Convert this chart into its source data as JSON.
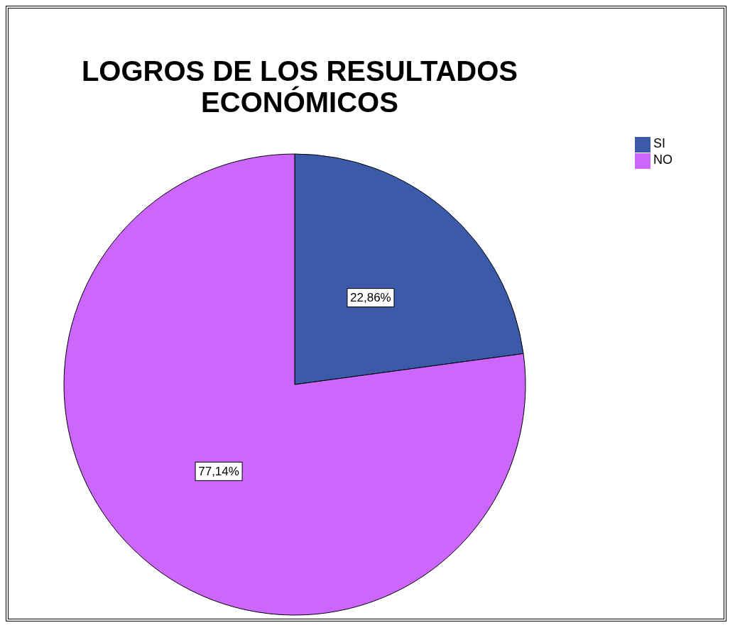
{
  "chart_data": {
    "type": "pie",
    "title": "LOGROS DE LOS RESULTADOS ECONÓMICOS",
    "categories": [
      "SI",
      "NO"
    ],
    "values": [
      22.86,
      77.14
    ],
    "colors": [
      "#3b5aa8",
      "#cc66ff"
    ],
    "value_labels": [
      "22,86%",
      "77,14%"
    ],
    "legend": "top right"
  }
}
